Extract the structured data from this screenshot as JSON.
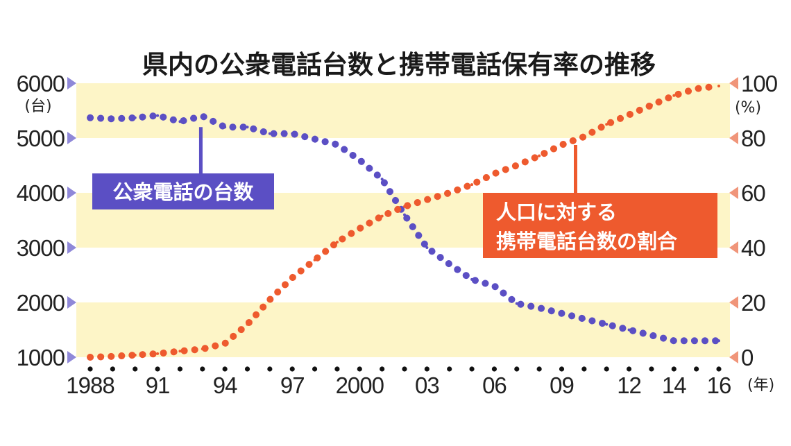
{
  "chart_data": {
    "type": "line",
    "title": "県内の公衆電話台数と携帯電話保有率の推移",
    "left_unit": "(台)",
    "right_unit": "(%)",
    "x_unit": "(年)",
    "ylim_left": [
      1000,
      6000
    ],
    "ylim_right": [
      0,
      100
    ],
    "xlim": [
      1988,
      2016
    ],
    "y_ticks_left": [
      "6000",
      "5000",
      "4000",
      "3000",
      "2000",
      "1000"
    ],
    "y_ticks_right": [
      "100",
      "80",
      "60",
      "40",
      "20",
      "0"
    ],
    "x_ticks": [
      {
        "label": "1988",
        "x": 1988
      },
      {
        "label": "91",
        "x": 1991
      },
      {
        "label": "94",
        "x": 1994
      },
      {
        "label": "97",
        "x": 1997
      },
      {
        "label": "2000",
        "x": 2000
      },
      {
        "label": "03",
        "x": 2003
      },
      {
        "label": "06",
        "x": 2006
      },
      {
        "label": "09",
        "x": 2009
      },
      {
        "label": "12",
        "x": 2012
      },
      {
        "label": "14",
        "x": 2014
      },
      {
        "label": "16",
        "x": 2016
      }
    ],
    "series": [
      {
        "name": "公衆電話の台数",
        "axis": "left",
        "color": "#5b4fc4",
        "points": [
          [
            1988,
            5370
          ],
          [
            1989,
            5350
          ],
          [
            1990,
            5370
          ],
          [
            1991,
            5410
          ],
          [
            1992,
            5300
          ],
          [
            1993,
            5400
          ],
          [
            1994,
            5200
          ],
          [
            1995,
            5200
          ],
          [
            1996,
            5080
          ],
          [
            1997,
            5080
          ],
          [
            1998,
            4980
          ],
          [
            1999,
            4880
          ],
          [
            2000,
            4600
          ],
          [
            2001,
            4250
          ],
          [
            2002,
            3600
          ],
          [
            2003,
            3000
          ],
          [
            2004,
            2700
          ],
          [
            2005,
            2420
          ],
          [
            2006,
            2300
          ],
          [
            2007,
            1980
          ],
          [
            2008,
            1900
          ],
          [
            2009,
            1800
          ],
          [
            2010,
            1700
          ],
          [
            2011,
            1600
          ],
          [
            2012,
            1500
          ],
          [
            2013,
            1400
          ],
          [
            2014,
            1300
          ],
          [
            2015,
            1300
          ],
          [
            2016,
            1300
          ]
        ]
      },
      {
        "name": "人口に対する携帯電話台数の割合",
        "axis": "right",
        "color": "#ee5a2e",
        "points": [
          [
            1988,
            0
          ],
          [
            1989,
            0.3
          ],
          [
            1990,
            0.8
          ],
          [
            1991,
            1.3
          ],
          [
            1992,
            2.2
          ],
          [
            1993,
            3
          ],
          [
            1994,
            5
          ],
          [
            1995,
            12
          ],
          [
            1996,
            21
          ],
          [
            1997,
            29
          ],
          [
            1998,
            35.5
          ],
          [
            1999,
            42
          ],
          [
            2000,
            47
          ],
          [
            2001,
            51.5
          ],
          [
            2002,
            55
          ],
          [
            2003,
            57.5
          ],
          [
            2004,
            60
          ],
          [
            2005,
            63
          ],
          [
            2006,
            67
          ],
          [
            2007,
            70
          ],
          [
            2008,
            73.5
          ],
          [
            2009,
            77.5
          ],
          [
            2010,
            80.5
          ],
          [
            2011,
            85
          ],
          [
            2012,
            88.5
          ],
          [
            2013,
            92
          ],
          [
            2014,
            95.5
          ],
          [
            2015,
            98
          ],
          [
            2016,
            99
          ]
        ]
      }
    ],
    "bands": "yellow",
    "legend": "inline labels"
  },
  "labels": {
    "payphone": "公衆電話の台数",
    "mobile_line1": "人口に対する",
    "mobile_line2": "携帯電話台数の割合"
  },
  "colors": {
    "band": "#fdf5c7",
    "payphone": "#5b4fc4",
    "mobile": "#ee5a2e",
    "left_arrow": "#8f88d8",
    "right_arrow": "#f0957a"
  }
}
